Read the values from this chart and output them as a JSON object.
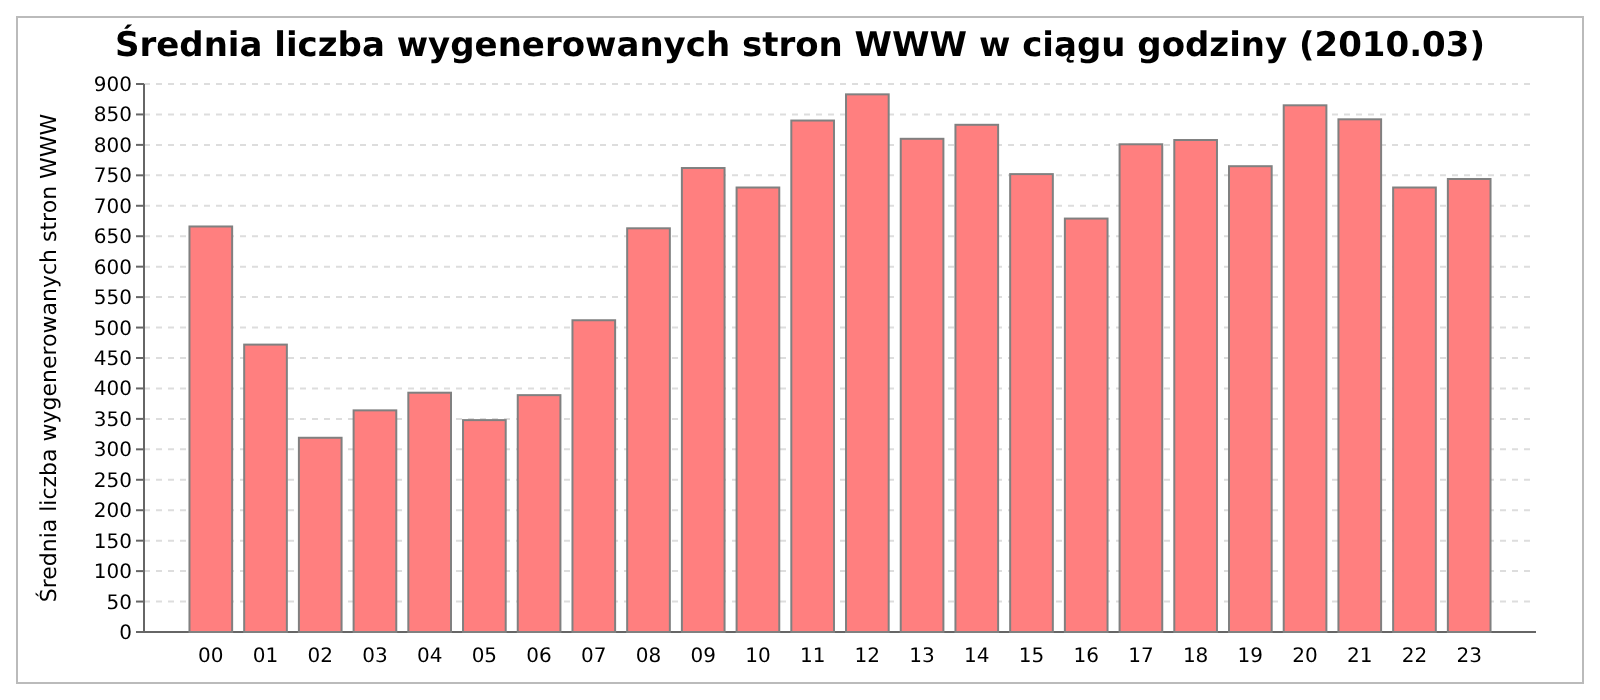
{
  "chart_data": {
    "type": "bar",
    "title": "Średnia liczba wygenerowanych stron WWW w ciągu godziny (2010.03)",
    "ylabel": "Średnia liczba wygenerowanych stron WWW",
    "categories": [
      "00",
      "01",
      "02",
      "03",
      "04",
      "05",
      "06",
      "07",
      "08",
      "09",
      "10",
      "11",
      "12",
      "13",
      "14",
      "15",
      "16",
      "17",
      "18",
      "19",
      "20",
      "21",
      "22",
      "23"
    ],
    "values": [
      666,
      472,
      319,
      364,
      393,
      348,
      389,
      512,
      663,
      762,
      730,
      840,
      883,
      810,
      833,
      752,
      679,
      801,
      808,
      765,
      865,
      842,
      730,
      744
    ],
    "color": "#ff7f7f",
    "ylim": [
      0,
      900
    ],
    "yticks": [
      0,
      50,
      100,
      150,
      200,
      250,
      300,
      350,
      400,
      450,
      500,
      550,
      600,
      650,
      700,
      750,
      800,
      850,
      900
    ],
    "grid": "y"
  }
}
